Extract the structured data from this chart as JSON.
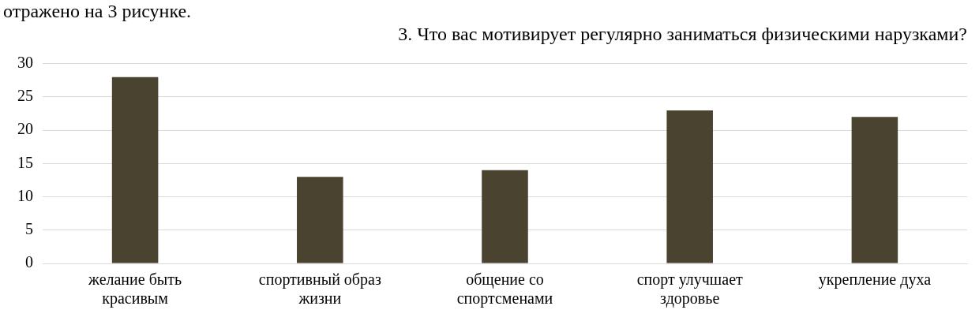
{
  "chart_data": {
    "type": "bar",
    "title": "3. Что вас мотивирует регулярно заниматься физическими нарузками?",
    "annotations": [
      "отражено на 3 рисунке."
    ],
    "categories": [
      "желание быть красивым",
      "спортивный образ жизни",
      "общение со спортсменами",
      "спорт улучшает здоровье",
      "укрепление духа"
    ],
    "values": [
      28,
      13,
      14,
      23,
      22
    ],
    "color": "#4a4330",
    "ylim": [
      0,
      30
    ],
    "yticks": [
      0,
      5,
      10,
      15,
      20,
      25,
      30
    ],
    "grid": "y",
    "legend": false
  }
}
